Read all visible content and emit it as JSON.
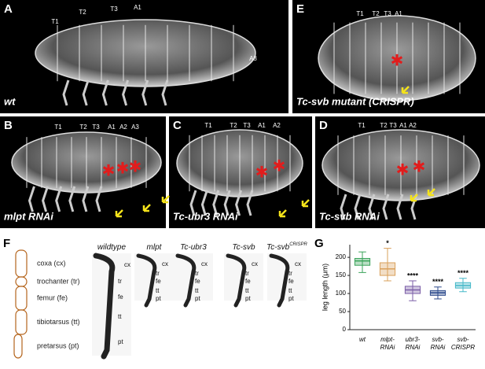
{
  "panels": [
    {
      "letter": "A",
      "caption": "wt",
      "segments": [
        "T1",
        "T2",
        "T3",
        "A1",
        "A8"
      ]
    },
    {
      "letter": "E",
      "caption": "Tc-svb mutant (CRISPR)",
      "segments": [
        "T1",
        "T2",
        "T3",
        "A1"
      ]
    },
    {
      "letter": "B",
      "caption": "mlpt RNAi",
      "segments": [
        "T1",
        "T2",
        "T3",
        "A1",
        "A2",
        "A3"
      ]
    },
    {
      "letter": "C",
      "caption": "Tc-ubr3 RNAi",
      "segments": [
        "T1",
        "T2",
        "T3",
        "A1",
        "A2"
      ]
    },
    {
      "letter": "D",
      "caption": "Tc-svb RNAi",
      "segments": [
        "T1",
        "T2",
        "T3",
        "A1",
        "A2"
      ]
    }
  ],
  "leg_diagram": {
    "letter": "F",
    "parts": [
      "coxa (cx)",
      "trochanter (tr)",
      "femur (fe)",
      "tibiotarsus (tt)",
      "pretarsus (pt)"
    ]
  },
  "leg_images": [
    {
      "title": "wildtype",
      "labels": [
        "cx",
        "tr",
        "fe",
        "tt",
        "pt"
      ]
    },
    {
      "title": "mlpt",
      "labels": [
        "cx",
        "tr",
        "fe",
        "tt",
        "pt"
      ]
    },
    {
      "title": "Tc-ubr3",
      "labels": [
        "cx",
        "tr",
        "fe",
        "tt",
        "pt"
      ]
    },
    {
      "title": "Tc-svb",
      "labels": [
        "cx",
        "tr",
        "fe",
        "tt",
        "pt"
      ]
    },
    {
      "title": "Tc-svb",
      "title_sup": "CRISPR",
      "labels": [
        "cx",
        "tr",
        "fe",
        "tt",
        "pt"
      ]
    }
  ],
  "boxplot": {
    "letter": "G",
    "y_label": "leg length (μm)",
    "ylim": [
      0,
      235
    ],
    "yticks": [
      0,
      50,
      100,
      150,
      200
    ],
    "categories": [
      [
        "wt"
      ],
      [
        "mlpt-",
        "RNAi"
      ],
      [
        "ubr3-",
        "RNAi"
      ],
      [
        "svb-",
        "RNAi"
      ],
      [
        "svb-",
        "CRISPR"
      ]
    ],
    "colors": [
      "#3aa35a",
      "#d9a05b",
      "#7b5ea7",
      "#2c4a8c",
      "#45b8c8"
    ],
    "significance": [
      null,
      "*",
      "****",
      "****",
      "****"
    ],
    "boxes": [
      {
        "min": 158,
        "q1": 178,
        "median": 190,
        "q3": 197,
        "max": 215
      },
      {
        "min": 135,
        "q1": 150,
        "median": 168,
        "q3": 185,
        "max": 225
      },
      {
        "min": 80,
        "q1": 100,
        "median": 110,
        "q3": 120,
        "max": 135
      },
      {
        "min": 85,
        "q1": 95,
        "median": 102,
        "q3": 108,
        "max": 118
      },
      {
        "min": 105,
        "q1": 115,
        "median": 122,
        "q3": 130,
        "max": 142
      }
    ]
  }
}
